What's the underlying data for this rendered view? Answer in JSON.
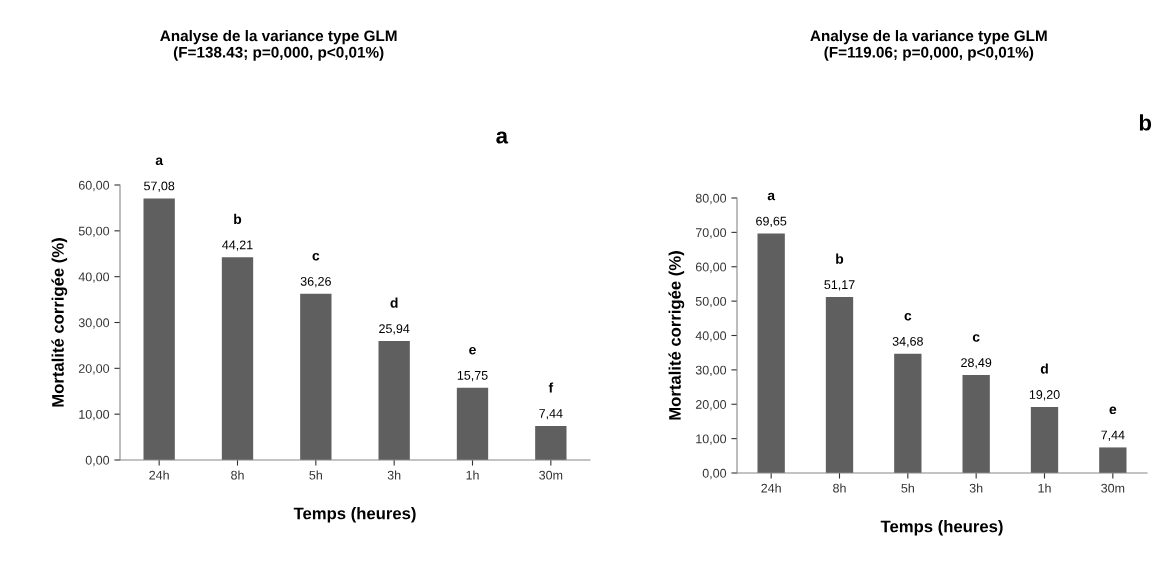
{
  "chart_data": [
    {
      "type": "bar",
      "title": "Analyse de la variance type GLM\n(F=138.43; p=0,000, p<0,01%)",
      "xlabel": "Temps (heures)",
      "ylabel": "Mortalité corrigée (%)",
      "categories": [
        "24h",
        "8h",
        "5h",
        "3h",
        "1h",
        "30m"
      ],
      "values": [
        57.08,
        44.21,
        36.26,
        25.94,
        15.75,
        7.44
      ],
      "value_labels": [
        "57,08",
        "44,21",
        "36,26",
        "25,94",
        "15,75",
        "7,44"
      ],
      "color": "#5f5f5f",
      "ylim": [
        0,
        60
      ],
      "yticks": [
        {
          "value": 0,
          "label": "0,00"
        },
        {
          "value": 10,
          "label": "10,00"
        },
        {
          "value": 20,
          "label": "20,00"
        },
        {
          "value": 30,
          "label": "30,00"
        },
        {
          "value": 40,
          "label": "40,00"
        },
        {
          "value": 50,
          "label": "50,00"
        },
        {
          "value": 60,
          "label": "60,00"
        }
      ],
      "grid": false,
      "annotations": [
        "a",
        {
          "text": "a",
          "x": "24h",
          "y": 57.08
        },
        {
          "text": "b",
          "x": "8h",
          "y": 44.21
        },
        {
          "text": "c",
          "x": "5h",
          "y": 36.26
        },
        {
          "text": "d",
          "x": "3h",
          "y": 25.94
        },
        {
          "text": "e",
          "x": "1h",
          "y": 15.75
        },
        {
          "text": "f",
          "x": "30m",
          "y": 7.44
        }
      ]
    },
    {
      "type": "bar",
      "title": "Analyse de la variance type GLM\n(F=119.06; p=0,000, p<0,01%)",
      "xlabel": "Temps (heures)",
      "ylabel": "Mortalité corrigée (%)",
      "categories": [
        "24h",
        "8h",
        "5h",
        "3h",
        "1h",
        "30m"
      ],
      "values": [
        69.65,
        51.17,
        34.68,
        28.49,
        19.2,
        7.44
      ],
      "value_labels": [
        "69,65",
        "51,17",
        "34,68",
        "28,49",
        "19,20",
        "7,44"
      ],
      "color": "#5f5f5f",
      "ylim": [
        0,
        80
      ],
      "yticks": [
        {
          "value": 0,
          "label": "0,00"
        },
        {
          "value": 10,
          "label": "10,00"
        },
        {
          "value": 20,
          "label": "20,00"
        },
        {
          "value": 30,
          "label": "30,00"
        },
        {
          "value": 40,
          "label": "40,00"
        },
        {
          "value": 50,
          "label": "50,00"
        },
        {
          "value": 60,
          "label": "60,00"
        },
        {
          "value": 70,
          "label": "70,00"
        },
        {
          "value": 80,
          "label": "80,00"
        }
      ],
      "grid": false,
      "annotations": [
        "b",
        {
          "text": "a",
          "x": "24h",
          "y": 69.65
        },
        {
          "text": "b",
          "x": "8h",
          "y": 51.17
        },
        {
          "text": "c",
          "x": "5h",
          "y": 34.68
        },
        {
          "text": "c",
          "x": "3h",
          "y": 28.49
        },
        {
          "text": "d",
          "x": "1h",
          "y": 19.2
        },
        {
          "text": "e",
          "x": "30m",
          "y": 7.44
        }
      ]
    }
  ]
}
